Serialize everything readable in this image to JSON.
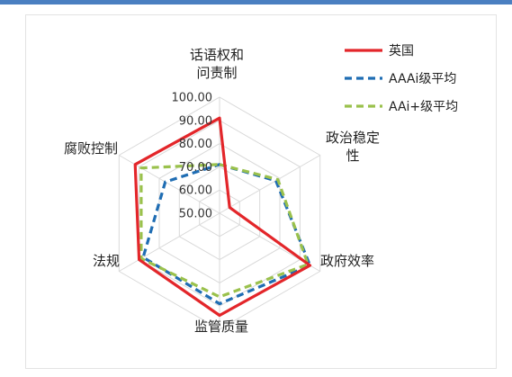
{
  "chart_data": {
    "type": "radar",
    "title": "",
    "axes": [
      [
        "话语权和",
        "问责制"
      ],
      [
        "政治稳定",
        "性"
      ],
      [
        "政府效率"
      ],
      [
        "监管质量"
      ],
      [
        "法规"
      ],
      [
        "腐败控制"
      ]
    ],
    "rlim": [
      50,
      100
    ],
    "ticks": [
      "50.00",
      "60.00",
      "70.00",
      "80.00",
      "90.00",
      "100.00"
    ],
    "grid": true,
    "legend_position": "top-right",
    "series": [
      {
        "name": "英国",
        "values": [
          91,
          55,
          95,
          94,
          90,
          92
        ],
        "color": "#e3262a",
        "dash": "solid"
      },
      {
        "name": "AAAi级平均",
        "values": [
          71,
          78,
          95,
          89,
          88,
          77
        ],
        "color": "#1f6db3",
        "dash": "dashed"
      },
      {
        "name": "AAi+级平均",
        "values": [
          71,
          79,
          94,
          86,
          89,
          89
        ],
        "color": "#9ac14c",
        "dash": "dashed"
      }
    ]
  }
}
